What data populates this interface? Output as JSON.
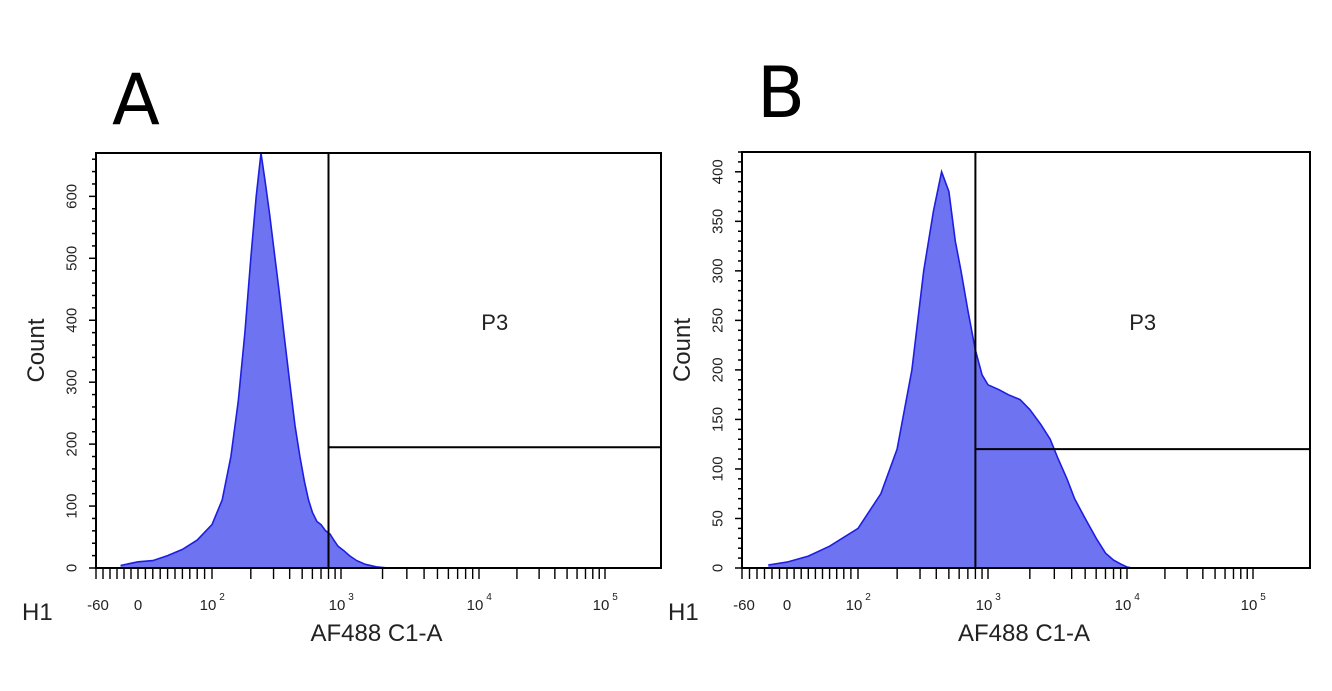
{
  "colors": {
    "fill": "#6e73f2",
    "stroke": "#1e1ee0",
    "frame": "#000000",
    "text": "#222222"
  },
  "chart_data": [
    {
      "type": "histogram",
      "panel": "A",
      "plot_id": "H1",
      "gate_label": "P3",
      "xlabel": "AF488 C1-A",
      "ylabel": "Count",
      "x_scale": "biexponential",
      "x_ticks": [
        {
          "value": -60,
          "label": "-60"
        },
        {
          "value": 0,
          "label": "0"
        },
        {
          "value": 100,
          "base": "10",
          "exp": "2"
        },
        {
          "value": 1000,
          "base": "10",
          "exp": "3"
        },
        {
          "value": 10000,
          "base": "10",
          "exp": "4"
        },
        {
          "value": 100000,
          "base": "10",
          "exp": "5"
        }
      ],
      "y_ticks": [
        0,
        100,
        200,
        300,
        400,
        500,
        600
      ],
      "ylim": [
        0,
        670
      ],
      "gate": {
        "x_start": 800,
        "y_threshold": 195
      },
      "x": [
        -25,
        0,
        20,
        40,
        60,
        80,
        100,
        120,
        140,
        160,
        180,
        200,
        220,
        240,
        260,
        280,
        300,
        330,
        360,
        400,
        440,
        480,
        520,
        560,
        600,
        650,
        700,
        760,
        820,
        880,
        950,
        1050,
        1150,
        1300,
        1500,
        1800,
        2200
      ],
      "values": [
        4,
        10,
        12,
        20,
        30,
        45,
        70,
        110,
        180,
        270,
        380,
        500,
        600,
        670,
        620,
        570,
        520,
        450,
        380,
        300,
        230,
        180,
        140,
        110,
        90,
        75,
        70,
        60,
        55,
        45,
        35,
        28,
        20,
        12,
        6,
        2,
        0
      ]
    },
    {
      "type": "histogram",
      "panel": "B",
      "plot_id": "H1",
      "gate_label": "P3",
      "xlabel": "AF488 C1-A",
      "ylabel": "Count",
      "x_scale": "biexponential",
      "x_ticks": [
        {
          "value": -60,
          "label": "-60"
        },
        {
          "value": 0,
          "label": "0"
        },
        {
          "value": 100,
          "base": "10",
          "exp": "2"
        },
        {
          "value": 1000,
          "base": "10",
          "exp": "3"
        },
        {
          "value": 10000,
          "base": "10",
          "exp": "4"
        },
        {
          "value": 100000,
          "base": "10",
          "exp": "5"
        }
      ],
      "y_ticks": [
        0,
        50,
        100,
        150,
        200,
        250,
        300,
        350,
        400
      ],
      "ylim": [
        0,
        420
      ],
      "gate": {
        "x_start": 800,
        "y_threshold": 120
      },
      "x": [
        -25,
        0,
        30,
        60,
        100,
        150,
        200,
        260,
        320,
        380,
        440,
        500,
        560,
        620,
        700,
        800,
        900,
        1000,
        1200,
        1400,
        1700,
        2000,
        2400,
        2800,
        3200,
        3700,
        4200,
        5000,
        6000,
        7000,
        8000,
        9000,
        10000,
        11000
      ],
      "values": [
        3,
        6,
        12,
        22,
        40,
        75,
        120,
        200,
        300,
        360,
        400,
        380,
        330,
        300,
        260,
        220,
        195,
        185,
        180,
        175,
        170,
        160,
        145,
        130,
        110,
        90,
        70,
        50,
        30,
        15,
        8,
        4,
        1,
        0
      ]
    }
  ]
}
